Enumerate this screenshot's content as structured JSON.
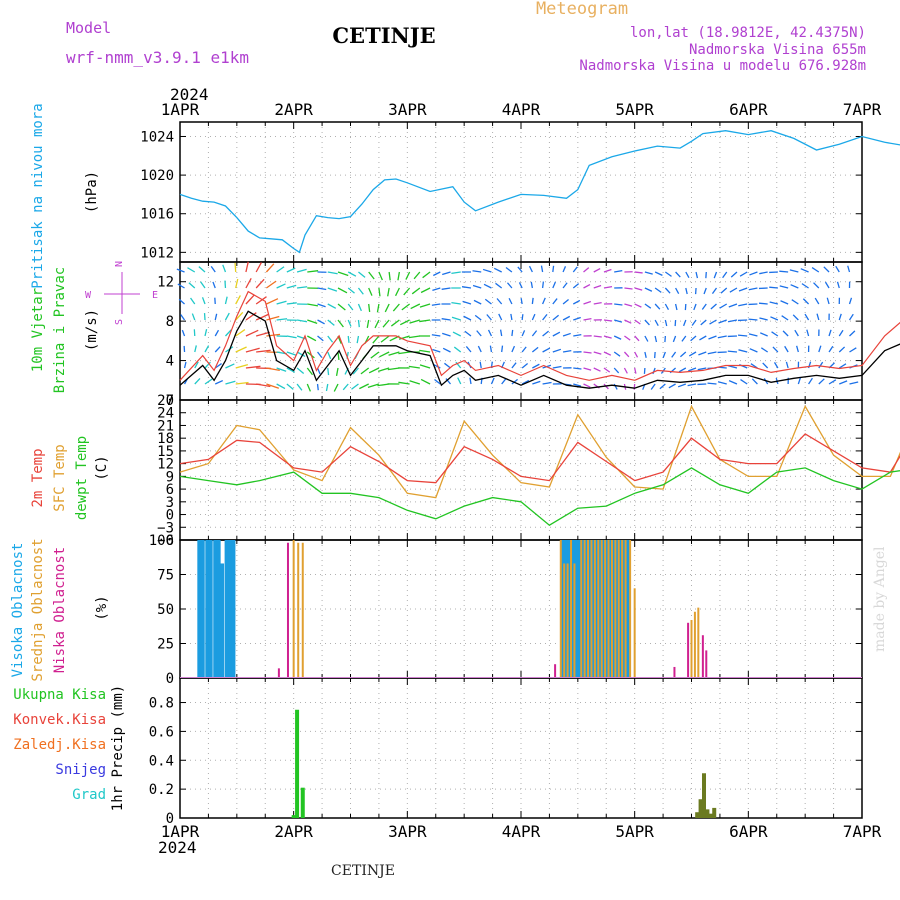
{
  "header": {
    "model_label": "Model",
    "model_name": "wrf-nmm_v3.9.1 e1km",
    "station": "CETINJE",
    "product": "Meteogram",
    "lonlat": "lon,lat (18.9812E, 42.4375N)",
    "elevation": "Nadmorska Visina 655m",
    "model_elevation": "Nadmorska Visina u modelu 676.928m",
    "footer_station": "CETINJE",
    "credit": "made by Angel"
  },
  "time_axis": {
    "year_top": "2024",
    "year_bottom": "2024",
    "labels": [
      "1APR",
      "2APR",
      "3APR",
      "4APR",
      "5APR",
      "6APR",
      "7APR"
    ]
  },
  "colors": {
    "pressure": "#1ba8e8",
    "t2m": "#e8433a",
    "sfc": "#e0a030",
    "dewpoint": "#22c422",
    "high_cloud": "#1b9ce0",
    "mid_cloud": "#e0a030",
    "low_cloud": "#d02090",
    "total_precip": "#22c422",
    "conv_precip": "#e8433a",
    "frozen_precip": "#f07020",
    "snow": "#3a3ae0",
    "hail": "#20c8c8",
    "wind_speed": "#000000",
    "wind_gust": "#e8433a",
    "wind_label_direction": "#c040d0"
  },
  "chart_data": [
    {
      "type": "line",
      "panel": "pressure",
      "ylabel": [
        "Pritisak na nivou mora",
        "(hPa)"
      ],
      "ylim": [
        1011,
        1025.5
      ],
      "yticks": [
        1012,
        1016,
        1020,
        1024
      ],
      "x_days": [
        0,
        0.1,
        0.2,
        0.3,
        0.4,
        0.5,
        0.6,
        0.7,
        0.8,
        0.9,
        1.0,
        1.05,
        1.1,
        1.2,
        1.3,
        1.4,
        1.5,
        1.6,
        1.7,
        1.8,
        1.9,
        2.0,
        2.2,
        2.4,
        2.5,
        2.6,
        2.8,
        3.0,
        3.2,
        3.4,
        3.5,
        3.6,
        3.8,
        4.0,
        4.2,
        4.4,
        4.5,
        4.6,
        4.8,
        5.0,
        5.2,
        5.4,
        5.6,
        5.8,
        6.0,
        6.2,
        6.4,
        6.5,
        6.6,
        6.8,
        7.0
      ],
      "series": [
        {
          "name": "pressure",
          "values": [
            1018.0,
            1017.6,
            1017.3,
            1017.2,
            1016.8,
            1015.6,
            1014.2,
            1013.5,
            1013.4,
            1013.3,
            1012.4,
            1012.0,
            1013.8,
            1015.8,
            1015.6,
            1015.5,
            1015.7,
            1017.0,
            1018.5,
            1019.5,
            1019.6,
            1019.2,
            1018.3,
            1018.8,
            1017.2,
            1016.3,
            1017.2,
            1018.0,
            1017.9,
            1017.6,
            1018.5,
            1021.0,
            1021.9,
            1022.5,
            1023.0,
            1022.8,
            1023.5,
            1024.3,
            1024.6,
            1024.2,
            1024.6,
            1023.8,
            1022.6,
            1023.2,
            1024.0,
            1023.4,
            1023.0,
            1023.6,
            1024.0,
            1023.6,
            1023.3
          ]
        }
      ]
    },
    {
      "type": "line",
      "panel": "wind",
      "ylabel": [
        "10m Vjetar",
        "Brzina i Pravac",
        "(m/s)"
      ],
      "ylim": [
        0,
        14
      ],
      "yticks": [
        0,
        4,
        8,
        12
      ],
      "direction_legend": [
        "N",
        "E",
        "S",
        "W"
      ],
      "x_days": [
        0,
        0.2,
        0.3,
        0.4,
        0.5,
        0.6,
        0.75,
        0.85,
        1.0,
        1.1,
        1.2,
        1.3,
        1.4,
        1.5,
        1.6,
        1.7,
        1.8,
        1.9,
        2.0,
        2.2,
        2.3,
        2.4,
        2.5,
        2.6,
        2.8,
        3.0,
        3.2,
        3.4,
        3.6,
        3.8,
        4.0,
        4.2,
        4.4,
        4.6,
        4.8,
        5.0,
        5.2,
        5.4,
        5.6,
        5.8,
        6.0,
        6.2,
        6.4,
        6.5,
        6.6,
        6.8,
        7.0
      ],
      "series": [
        {
          "name": "speed",
          "values": [
            1.5,
            3.5,
            2.0,
            4.0,
            7.0,
            9.0,
            8.0,
            4.0,
            3.0,
            5.0,
            2.0,
            3.5,
            5.0,
            2.5,
            4.0,
            5.5,
            5.5,
            5.5,
            5.0,
            4.5,
            1.5,
            2.5,
            3.0,
            2.0,
            2.5,
            1.5,
            2.5,
            1.5,
            1.2,
            1.5,
            1.2,
            2.0,
            1.8,
            2.0,
            2.5,
            2.5,
            1.8,
            2.2,
            2.5,
            2.2,
            2.5,
            5.0,
            6.0,
            5.5,
            5.0,
            3.5,
            4.0
          ]
        },
        {
          "name": "gust",
          "values": [
            2.0,
            4.5,
            3.0,
            5.5,
            8.5,
            11.0,
            10.0,
            5.5,
            4.0,
            6.5,
            3.0,
            5.0,
            6.5,
            3.5,
            5.5,
            6.5,
            6.5,
            6.5,
            6.0,
            5.5,
            2.5,
            3.5,
            4.0,
            3.0,
            3.5,
            2.5,
            3.5,
            2.5,
            2.0,
            2.5,
            2.0,
            3.0,
            2.8,
            3.0,
            3.5,
            3.5,
            2.8,
            3.2,
            3.5,
            3.2,
            3.5,
            6.5,
            8.5,
            7.0,
            6.0,
            4.5,
            5.0
          ]
        }
      ]
    },
    {
      "type": "line",
      "panel": "temperature",
      "ylabel": [
        "2m Temp",
        "SFC Temp",
        "dewpt Temp",
        "(C)"
      ],
      "ylim": [
        -6,
        27
      ],
      "yticks": [
        -6,
        -3,
        0,
        3,
        6,
        9,
        12,
        15,
        18,
        21,
        24,
        27
      ],
      "x_days": [
        0,
        0.25,
        0.5,
        0.7,
        1.0,
        1.25,
        1.5,
        1.75,
        2.0,
        2.25,
        2.5,
        2.75,
        3.0,
        3.25,
        3.5,
        3.75,
        4.0,
        4.25,
        4.5,
        4.75,
        5.0,
        5.25,
        5.5,
        5.75,
        6.0,
        6.25,
        6.5,
        6.75,
        7.0
      ],
      "series": [
        {
          "name": "2m Temp",
          "values": [
            12,
            13,
            17.5,
            17,
            11,
            10,
            16,
            12.5,
            8,
            7.5,
            16,
            13,
            9,
            8,
            17,
            12.5,
            8,
            10,
            18,
            13,
            12,
            12,
            19,
            15,
            11,
            10,
            21,
            15,
            14
          ]
        },
        {
          "name": "SFC Temp",
          "values": [
            10,
            12,
            21,
            20,
            10.5,
            8,
            20.5,
            14,
            5,
            4,
            22,
            14,
            7.5,
            6.5,
            23.5,
            13.5,
            6.5,
            6,
            25.5,
            13,
            9,
            9,
            25.5,
            14,
            9,
            9,
            25,
            13,
            9
          ]
        },
        {
          "name": "dewpt Temp",
          "values": [
            9,
            8,
            7,
            8,
            10,
            5,
            5,
            4,
            1,
            -1,
            2,
            4,
            3,
            -2.5,
            1.5,
            2,
            5,
            7,
            11,
            7,
            5,
            10,
            11,
            8,
            6,
            10,
            11,
            9,
            9
          ]
        }
      ]
    },
    {
      "type": "bar",
      "panel": "cloud",
      "ylabel": [
        "Visoka Oblacnost",
        "Srednja Oblacnost",
        "Niska Oblacnost",
        "(%)"
      ],
      "ylim": [
        0,
        100
      ],
      "yticks": [
        0,
        25,
        50,
        75,
        100
      ],
      "series": [
        {
          "name": "Visoka Oblacnost",
          "x_days": [
            0.17,
            0.2,
            0.24,
            0.27,
            0.31,
            0.34,
            0.37,
            0.41,
            0.44,
            0.47,
            3.37,
            3.4,
            3.43,
            3.46,
            3.49,
            3.52,
            3.55,
            3.58,
            3.61,
            3.64,
            3.67,
            3.7,
            3.73,
            3.76,
            3.79,
            3.82,
            3.85,
            3.88,
            3.91,
            3.94
          ],
          "values": [
            100,
            100,
            100,
            100,
            100,
            100,
            83,
            100,
            100,
            100,
            100,
            100,
            100,
            100,
            100,
            100,
            100,
            100,
            100,
            100,
            100,
            100,
            100,
            100,
            100,
            100,
            100,
            100,
            100,
            100
          ]
        },
        {
          "name": "Srednja Oblacnost",
          "x_days": [
            1.0,
            1.04,
            1.08,
            3.35,
            3.38,
            3.41,
            3.44,
            3.47,
            3.53,
            3.56,
            3.59,
            3.62,
            3.65,
            3.68,
            3.71,
            3.74,
            3.77,
            3.8,
            3.83,
            3.86,
            3.89,
            3.92,
            3.96,
            4.0,
            4.5,
            4.53,
            4.56
          ],
          "values": [
            100,
            98,
            98,
            100,
            83,
            83,
            100,
            83,
            100,
            100,
            100,
            100,
            100,
            100,
            100,
            100,
            100,
            100,
            100,
            100,
            100,
            100,
            100,
            65,
            42,
            48,
            51
          ]
        },
        {
          "name": "Niska Oblacnost",
          "x_days": [
            0.87,
            0.95,
            3.3,
            4.35,
            4.47,
            4.6,
            4.63
          ],
          "values": [
            7,
            98,
            10,
            8,
            40,
            31,
            20
          ]
        }
      ]
    },
    {
      "type": "bar",
      "panel": "precip",
      "ylabel": [
        "1hr Precip (mm)"
      ],
      "ylim": [
        0,
        0.97
      ],
      "yticks": [
        0,
        0.2,
        0.4,
        0.6,
        0.8
      ],
      "legend": [
        "Ukupna Kisa",
        "Konvek.Kisa",
        "Zaledj.Kisa",
        "Snijeg",
        "Grad"
      ],
      "series": [
        {
          "name": "Ukupna Kisa",
          "x_days": [
            1.0,
            1.03,
            1.08,
            4.55,
            4.58,
            4.61,
            4.64,
            4.67,
            4.7
          ],
          "values": [
            0.02,
            0.75,
            0.21,
            0.04,
            0.13,
            0.31,
            0.06,
            0.03,
            0.07
          ]
        }
      ]
    }
  ]
}
